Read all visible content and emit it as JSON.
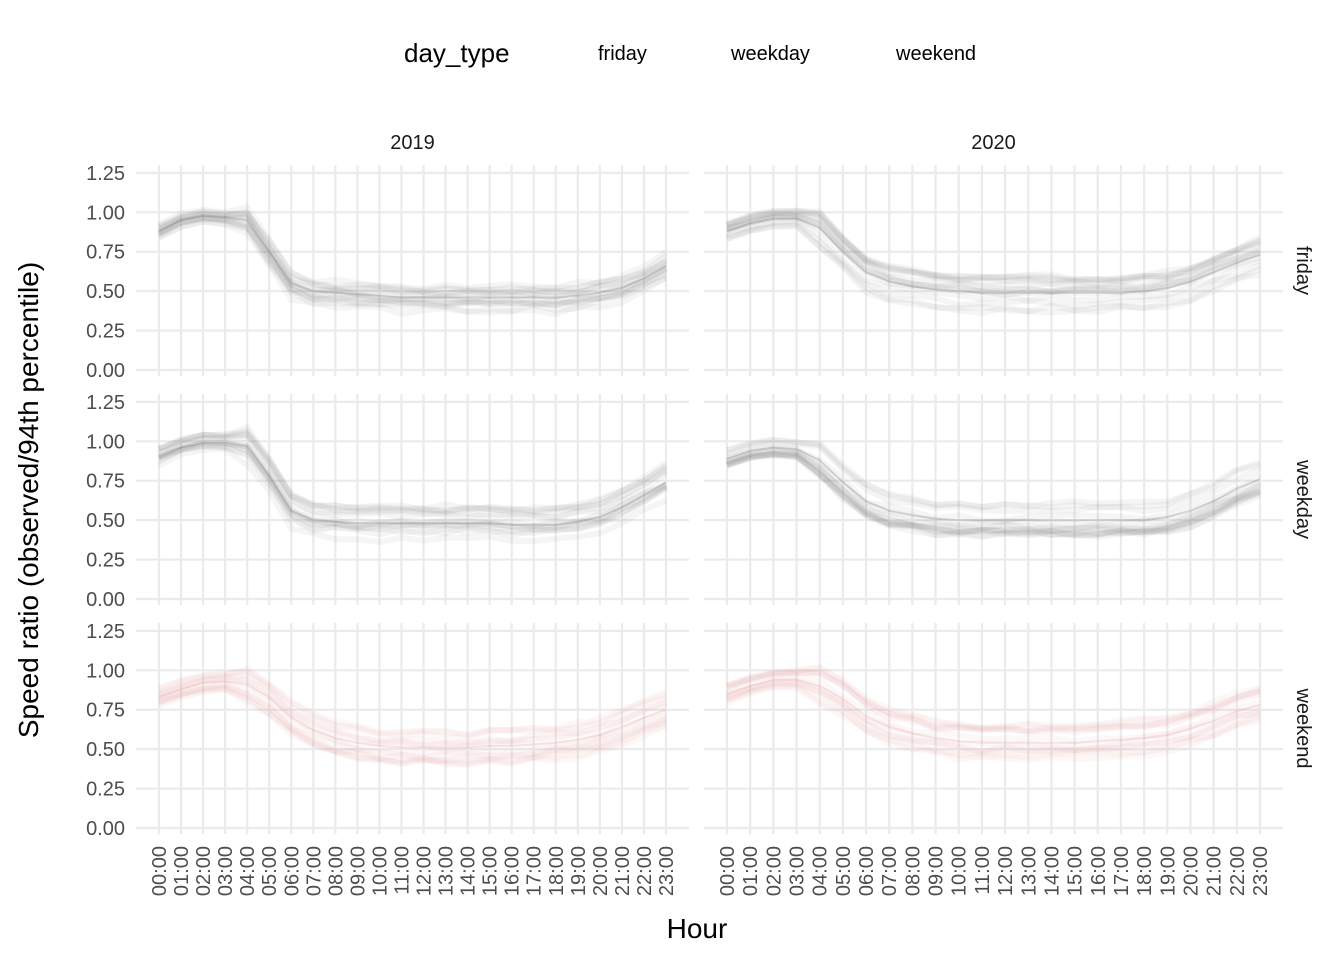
{
  "chart_data": {
    "type": "line",
    "title": "",
    "xlabel": "Hour",
    "ylabel": "Speed ratio (observed/94th percentile)",
    "legend": {
      "title": "day_type",
      "placement": "top",
      "entries": [
        {
          "label": "friday",
          "color": "#777777"
        },
        {
          "label": "weekday",
          "color": "#777777"
        },
        {
          "label": "weekend",
          "color": "#e8a0a0"
        }
      ]
    },
    "facet_cols": [
      "2019",
      "2020"
    ],
    "facet_rows": [
      "friday",
      "weekday",
      "weekend"
    ],
    "x_ticks": [
      "00:00",
      "01:00",
      "02:00",
      "03:00",
      "04:00",
      "05:00",
      "06:00",
      "07:00",
      "08:00",
      "09:00",
      "10:00",
      "11:00",
      "12:00",
      "13:00",
      "14:00",
      "15:00",
      "16:00",
      "17:00",
      "18:00",
      "19:00",
      "20:00",
      "21:00",
      "22:00",
      "23:00"
    ],
    "y_ticks": [
      "0.00",
      "0.25",
      "0.50",
      "0.75",
      "1.00",
      "1.25"
    ],
    "ylim": [
      0,
      1.3
    ],
    "grid": true,
    "panels": [
      {
        "col": "2019",
        "row": "friday",
        "color": "#777777",
        "values": [
          0.88,
          0.95,
          0.98,
          0.97,
          0.95,
          0.75,
          0.55,
          0.5,
          0.49,
          0.48,
          0.47,
          0.46,
          0.46,
          0.46,
          0.46,
          0.46,
          0.46,
          0.46,
          0.46,
          0.47,
          0.49,
          0.52,
          0.58,
          0.66
        ]
      },
      {
        "col": "2020",
        "row": "friday",
        "color": "#777777",
        "values": [
          0.88,
          0.93,
          0.96,
          0.96,
          0.9,
          0.75,
          0.62,
          0.56,
          0.53,
          0.51,
          0.5,
          0.49,
          0.49,
          0.49,
          0.49,
          0.49,
          0.49,
          0.49,
          0.5,
          0.52,
          0.56,
          0.62,
          0.68,
          0.73
        ]
      },
      {
        "col": "2019",
        "row": "weekday",
        "color": "#777777",
        "values": [
          0.9,
          0.96,
          0.99,
          0.99,
          0.97,
          0.78,
          0.56,
          0.5,
          0.49,
          0.48,
          0.48,
          0.48,
          0.48,
          0.48,
          0.48,
          0.48,
          0.47,
          0.47,
          0.47,
          0.49,
          0.52,
          0.58,
          0.66,
          0.74
        ]
      },
      {
        "col": "2020",
        "row": "weekday",
        "color": "#777777",
        "values": [
          0.89,
          0.94,
          0.96,
          0.95,
          0.88,
          0.74,
          0.62,
          0.56,
          0.53,
          0.51,
          0.5,
          0.5,
          0.5,
          0.5,
          0.5,
          0.5,
          0.5,
          0.5,
          0.5,
          0.52,
          0.56,
          0.62,
          0.7,
          0.76
        ]
      },
      {
        "col": "2019",
        "row": "weekend",
        "color": "#e8a0a0",
        "values": [
          0.83,
          0.88,
          0.92,
          0.93,
          0.91,
          0.83,
          0.7,
          0.62,
          0.57,
          0.54,
          0.52,
          0.51,
          0.51,
          0.51,
          0.51,
          0.52,
          0.52,
          0.53,
          0.54,
          0.56,
          0.59,
          0.64,
          0.7,
          0.75
        ]
      },
      {
        "col": "2020",
        "row": "weekend",
        "color": "#e8a0a0",
        "values": [
          0.85,
          0.9,
          0.94,
          0.94,
          0.9,
          0.82,
          0.71,
          0.64,
          0.6,
          0.57,
          0.55,
          0.54,
          0.54,
          0.54,
          0.54,
          0.54,
          0.55,
          0.56,
          0.57,
          0.59,
          0.63,
          0.68,
          0.74,
          0.78
        ]
      }
    ]
  }
}
